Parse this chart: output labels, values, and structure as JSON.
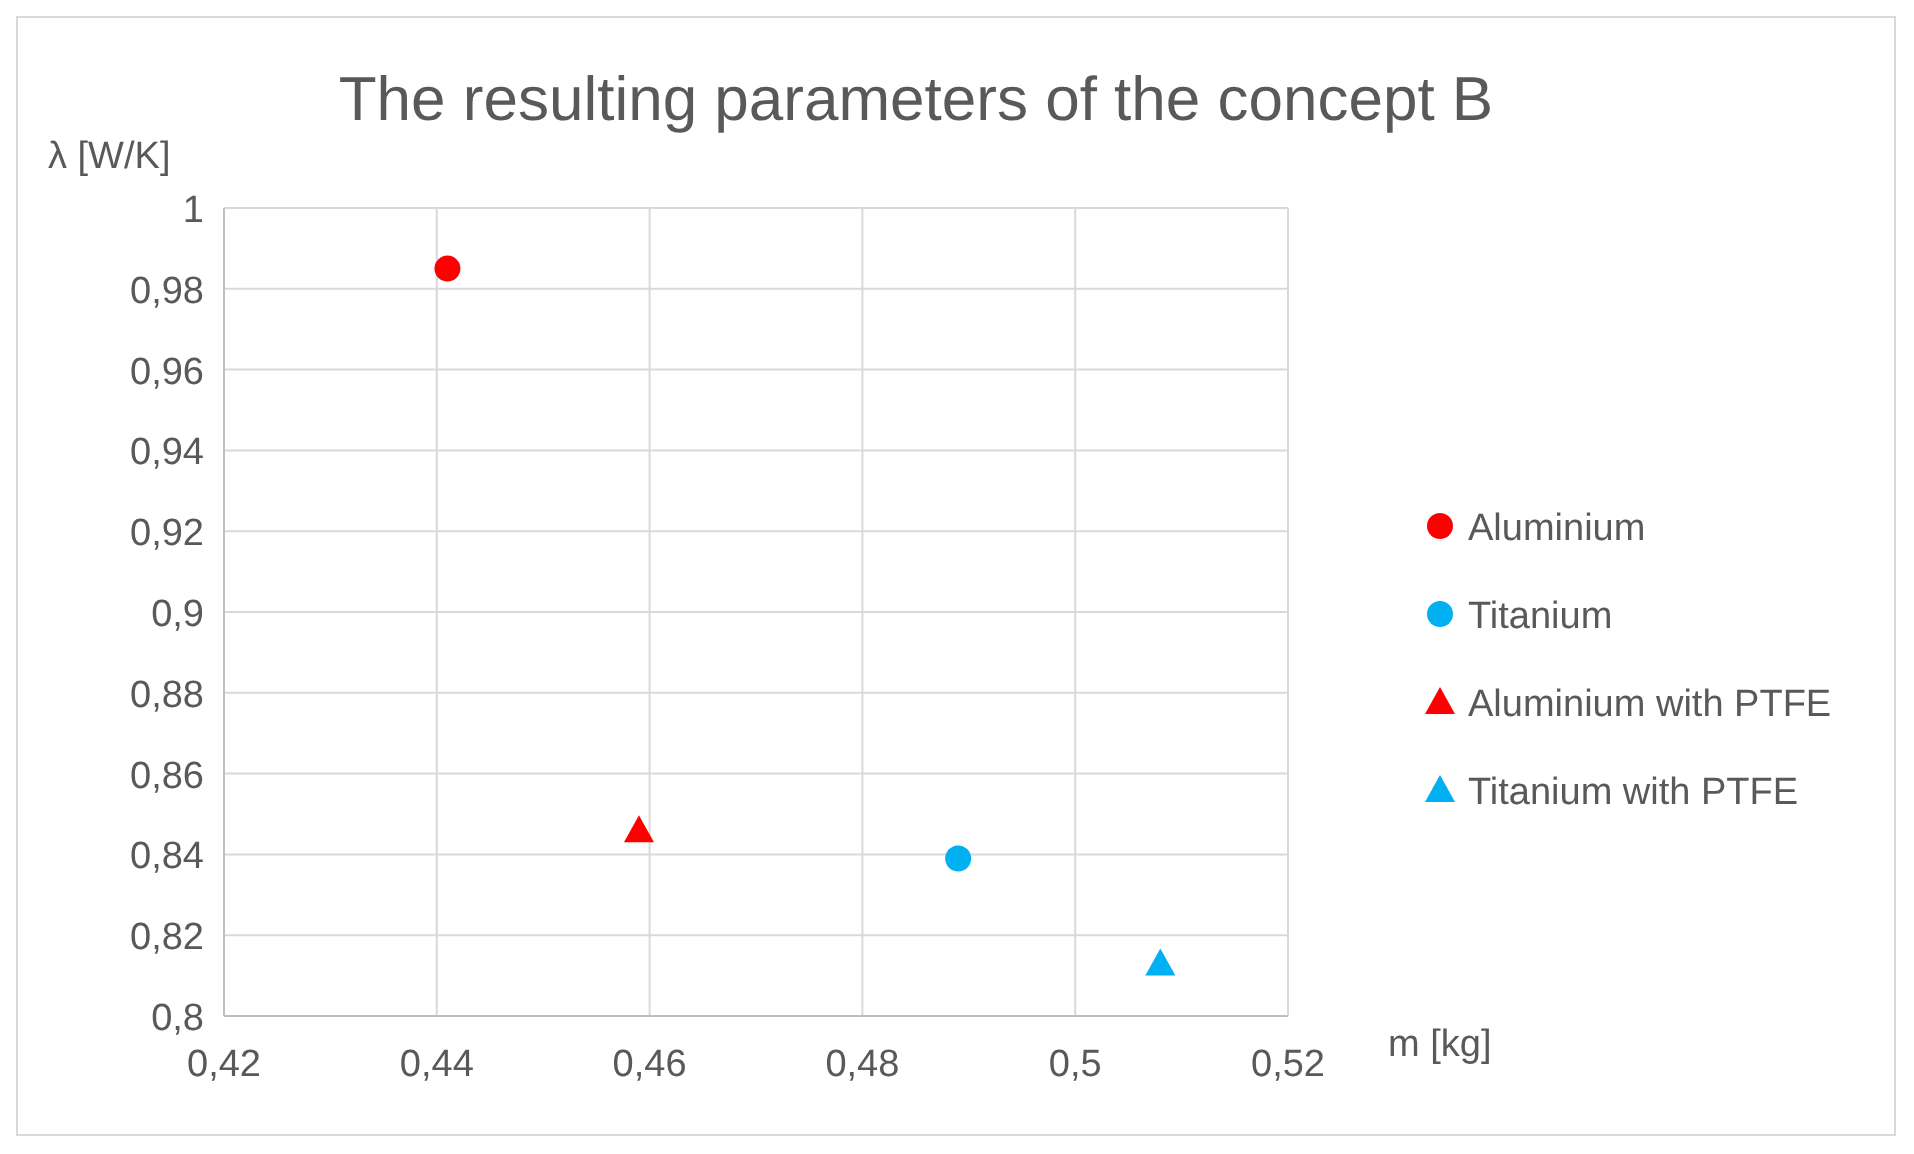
{
  "chart_data": {
    "type": "scatter",
    "title": "The resulting parameters of the concept B",
    "xlabel": "m [kg]",
    "ylabel": "λ [W/K]",
    "series": [
      {
        "name": "Aluminium",
        "color": "#ff0000",
        "marker": "circle",
        "x": [
          0.441
        ],
        "values": [
          0.985
        ]
      },
      {
        "name": "Titanium",
        "color": "#00b0f0",
        "marker": "circle",
        "x": [
          0.489
        ],
        "values": [
          0.839
        ]
      },
      {
        "name": "Aluminium with PTFE",
        "color": "#ff0000",
        "marker": "triangle",
        "x": [
          0.459
        ],
        "values": [
          0.846
        ]
      },
      {
        "name": "Titanium with PTFE",
        "color": "#00b0f0",
        "marker": "triangle",
        "x": [
          0.508
        ],
        "values": [
          0.813
        ]
      }
    ],
    "xlim": [
      0.42,
      0.52
    ],
    "xticks": [
      {
        "value": 0.42,
        "label": "0,42"
      },
      {
        "value": 0.44,
        "label": "0,44"
      },
      {
        "value": 0.46,
        "label": "0,46"
      },
      {
        "value": 0.48,
        "label": "0,48"
      },
      {
        "value": 0.5,
        "label": "0,5"
      },
      {
        "value": 0.52,
        "label": "0,52"
      }
    ],
    "ylim": [
      0.8,
      1
    ],
    "yticks": [
      {
        "value": 0.8,
        "label": "0,8"
      },
      {
        "value": 0.82,
        "label": "0,82"
      },
      {
        "value": 0.84,
        "label": "0,84"
      },
      {
        "value": 0.86,
        "label": "0,86"
      },
      {
        "value": 0.88,
        "label": "0,88"
      },
      {
        "value": 0.9,
        "label": "0,9"
      },
      {
        "value": 0.92,
        "label": "0,92"
      },
      {
        "value": 0.94,
        "label": "0,94"
      },
      {
        "value": 0.96,
        "label": "0,96"
      },
      {
        "value": 0.98,
        "label": "0,98"
      },
      {
        "value": 1,
        "label": "1"
      }
    ],
    "grid": true,
    "legend": "right"
  }
}
